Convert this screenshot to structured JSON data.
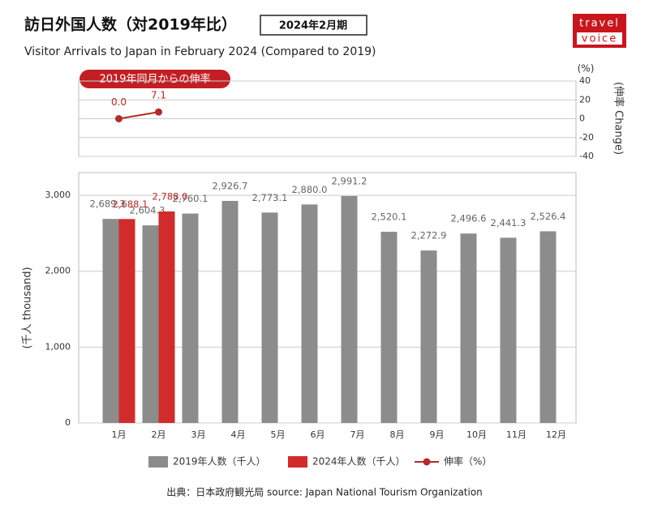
{
  "header": {
    "title": "訪日外国人数（対2019年比）",
    "badge": "2024年2月期",
    "subtitle": "Visitor Arrivals to Japan in February 2024 (Compared to 2019)",
    "logo": {
      "top": "travel",
      "bottom": "voice"
    }
  },
  "chart_data": [
    {
      "type": "line",
      "annotation": "2019年同月からの伸率",
      "y2unit": "(%)",
      "y2label": "(伸率 Change)",
      "y2lim": [
        -40,
        40
      ],
      "y2ticks": [
        -40,
        -20,
        0,
        20,
        40
      ],
      "grid": true,
      "series": [
        {
          "name": "伸率（%）",
          "color": "#b52a2a",
          "axis": "y2",
          "values": [
            0.0,
            7.1,
            null,
            null,
            null,
            null,
            null,
            null,
            null,
            null,
            null,
            null
          ],
          "value_labels": [
            "0.0",
            "7.1",
            null,
            null,
            null,
            null,
            null,
            null,
            null,
            null,
            null,
            null
          ]
        }
      ]
    },
    {
      "type": "bar",
      "ylabel": "(千人 thousand)",
      "categories": [
        "1月",
        "2月",
        "3月",
        "4月",
        "5月",
        "6月",
        "7月",
        "8月",
        "9月",
        "10月",
        "11月",
        "12月"
      ],
      "ylim": [
        0,
        3300
      ],
      "yticks": [
        0,
        {
          "value": 1000,
          "label": "1,000"
        },
        {
          "value": 2000,
          "label": "2,000"
        },
        {
          "value": 3000,
          "label": "3,000"
        }
      ],
      "grid": true,
      "series": [
        {
          "name": "2019年人数（千人）",
          "color": "#8c8c8c",
          "values": [
            2689.3,
            2604.3,
            2760.1,
            2926.7,
            2773.1,
            2880.0,
            2991.2,
            2520.1,
            2272.9,
            2496.6,
            2441.3,
            2526.4
          ],
          "value_labels": [
            "2,689.3",
            "2,604.3",
            "2,760.1",
            "2,926.7",
            "2,773.1",
            "2,880.0",
            "2,991.2",
            "2,520.1",
            "2,272.9",
            "2,496.6",
            "2,441.3",
            "2,526.4"
          ]
        },
        {
          "name": "2024年人数（千人）",
          "color": "#d12b2b",
          "values": [
            2688.1,
            2788.0,
            null,
            null,
            null,
            null,
            null,
            null,
            null,
            null,
            null,
            null
          ],
          "value_labels": [
            "2,688.1",
            "2,788.0",
            null,
            null,
            null,
            null,
            null,
            null,
            null,
            null,
            null,
            null
          ]
        }
      ]
    }
  ],
  "source": "出典：日本政府観光局  source: Japan National Tourism Organization"
}
